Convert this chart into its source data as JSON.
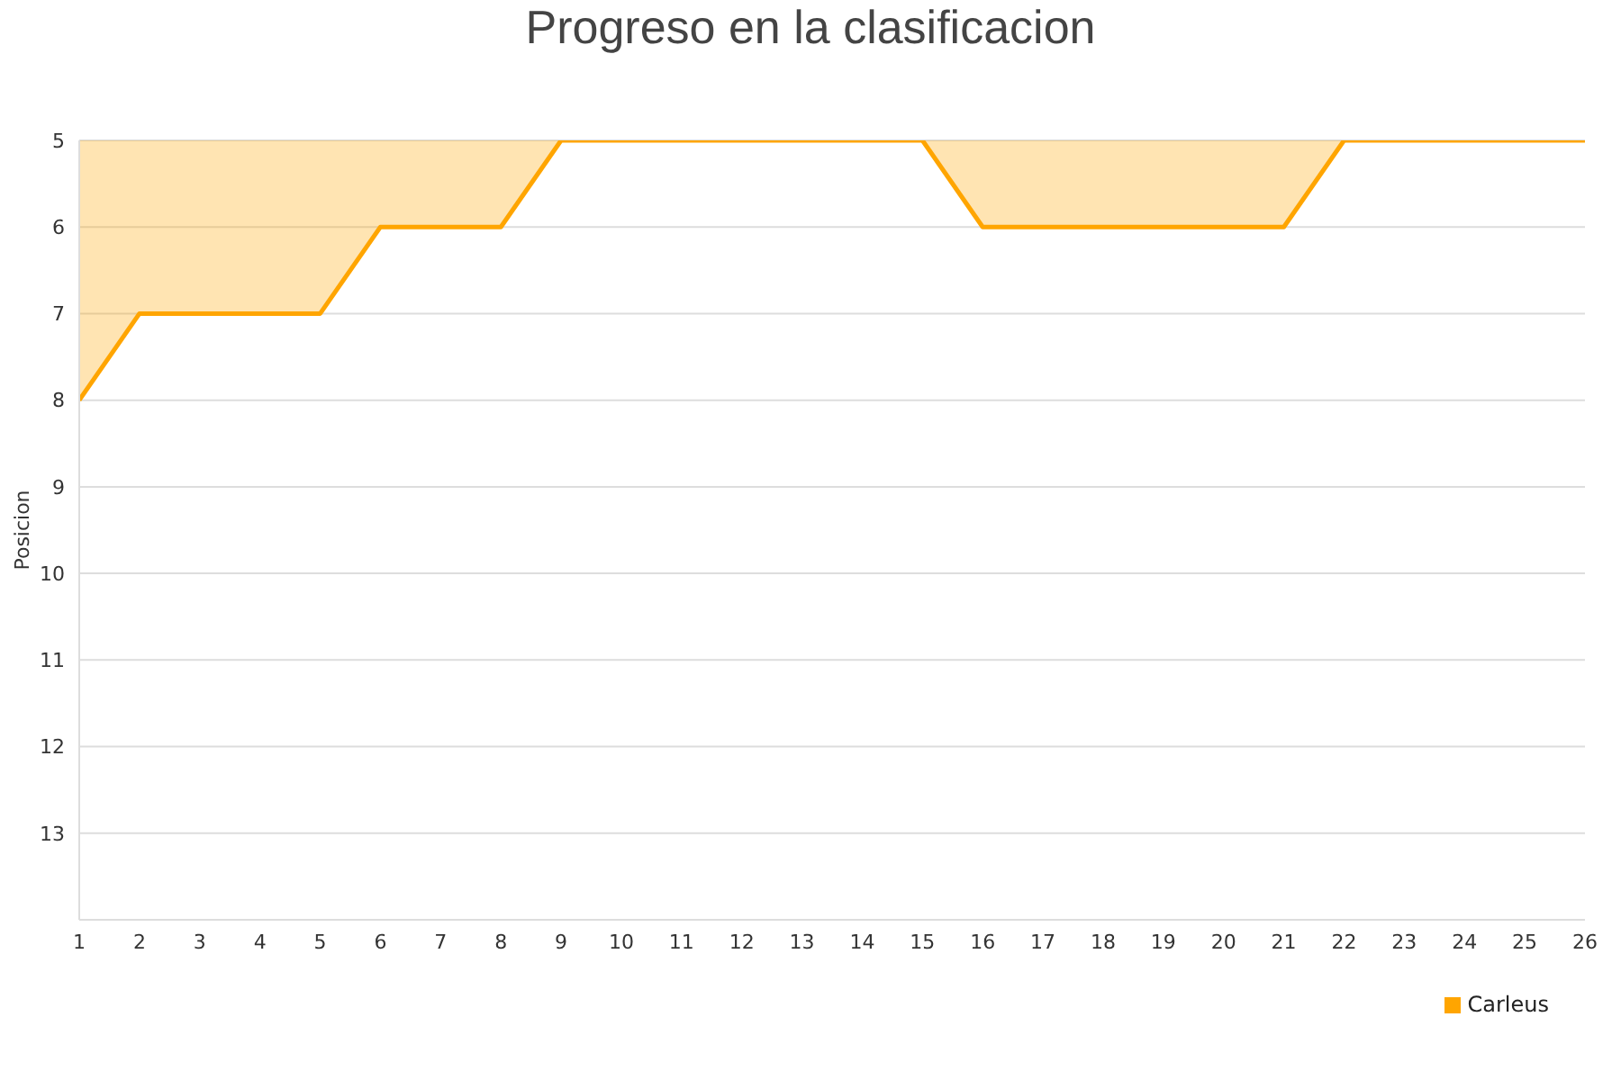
{
  "chart_data": {
    "type": "area",
    "title": "Progreso en la clasificacion",
    "ylabel": "Posicion",
    "x": [
      1,
      2,
      3,
      4,
      5,
      6,
      7,
      8,
      9,
      10,
      11,
      12,
      13,
      14,
      15,
      16,
      17,
      18,
      19,
      20,
      21,
      22,
      23,
      24,
      25,
      26
    ],
    "series": [
      {
        "name": "Carleus",
        "color": "#ffa500",
        "values": [
          8,
          7,
          7,
          7,
          7,
          6,
          6,
          6,
          5,
          5,
          5,
          5,
          5,
          5,
          5,
          6,
          6,
          6,
          6,
          6,
          6,
          5,
          5,
          5,
          5,
          5
        ]
      }
    ],
    "xlim": [
      1,
      26
    ],
    "xticks": [
      1,
      2,
      3,
      4,
      5,
      6,
      7,
      8,
      9,
      10,
      11,
      12,
      13,
      14,
      15,
      16,
      17,
      18,
      19,
      20,
      21,
      22,
      23,
      24,
      25,
      26
    ],
    "ylim": [
      14,
      5
    ],
    "yticks": [
      5,
      6,
      7,
      8,
      9,
      10,
      11,
      12,
      13,
      {
        "value": 14,
        "label": null
      }
    ],
    "grid": "y",
    "legend": "bottom right"
  }
}
